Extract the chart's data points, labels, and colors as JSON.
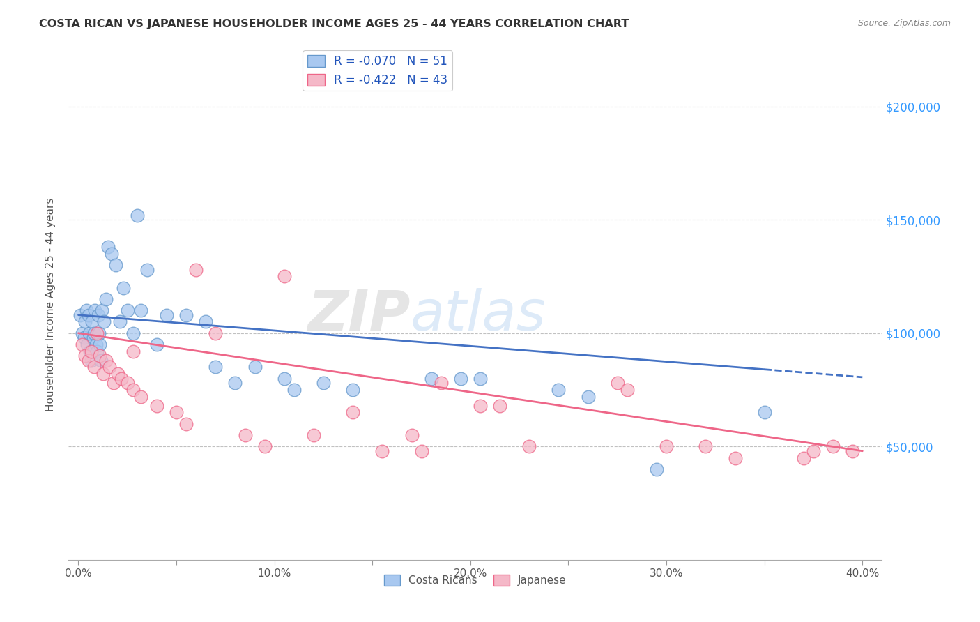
{
  "title": "COSTA RICAN VS JAPANESE HOUSEHOLDER INCOME AGES 25 - 44 YEARS CORRELATION CHART",
  "source": "Source: ZipAtlas.com",
  "xlabel_ticks": [
    "0.0%",
    "",
    "10.0%",
    "",
    "20.0%",
    "",
    "30.0%",
    "",
    "40.0%"
  ],
  "xlabel_values": [
    0.0,
    5.0,
    10.0,
    15.0,
    20.0,
    25.0,
    30.0,
    35.0,
    40.0
  ],
  "ylabel_ticks": [
    "$50,000",
    "$100,000",
    "$150,000",
    "$200,000"
  ],
  "ylabel_values": [
    50000,
    100000,
    150000,
    200000
  ],
  "ylabel_label": "Householder Income Ages 25 - 44 years",
  "xlim": [
    -0.5,
    41.0
  ],
  "ylim": [
    0,
    225000
  ],
  "legend_cr": "R = -0.070   N = 51",
  "legend_jp": "R = -0.422   N = 43",
  "cr_color": "#a8c8f0",
  "jp_color": "#f5b8c8",
  "cr_edge_color": "#6699cc",
  "jp_edge_color": "#ee6688",
  "cr_line_color": "#4472c4",
  "jp_line_color": "#ee6688",
  "background_color": "#ffffff",
  "watermark_zip": "ZIP",
  "watermark_atlas": "atlas",
  "cr_R": "-0.070",
  "cr_N": "51",
  "jp_R": "-0.422",
  "jp_N": "43",
  "costa_ricans_x": [
    0.1,
    0.2,
    0.3,
    0.35,
    0.4,
    0.45,
    0.5,
    0.55,
    0.6,
    0.65,
    0.7,
    0.75,
    0.8,
    0.85,
    0.9,
    0.95,
    1.0,
    1.05,
    1.1,
    1.15,
    1.2,
    1.3,
    1.4,
    1.5,
    1.7,
    1.9,
    2.1,
    2.3,
    2.5,
    2.8,
    3.2,
    3.5,
    4.0,
    4.5,
    5.5,
    6.5,
    7.0,
    8.0,
    9.0,
    10.5,
    11.0,
    12.5,
    14.0,
    18.0,
    19.5,
    20.5,
    24.5,
    26.0,
    29.5,
    35.0,
    3.0
  ],
  "costa_ricans_y": [
    108000,
    100000,
    98000,
    105000,
    110000,
    95000,
    108000,
    100000,
    92000,
    88000,
    105000,
    98000,
    100000,
    110000,
    95000,
    92000,
    108000,
    100000,
    95000,
    88000,
    110000,
    105000,
    115000,
    138000,
    135000,
    130000,
    105000,
    120000,
    110000,
    100000,
    110000,
    128000,
    95000,
    108000,
    108000,
    105000,
    85000,
    78000,
    85000,
    80000,
    75000,
    78000,
    75000,
    80000,
    80000,
    80000,
    75000,
    72000,
    40000,
    65000,
    152000
  ],
  "japanese_x": [
    0.2,
    0.35,
    0.5,
    0.65,
    0.8,
    0.95,
    1.1,
    1.25,
    1.4,
    1.6,
    1.8,
    2.0,
    2.2,
    2.5,
    2.8,
    3.2,
    4.0,
    5.0,
    5.5,
    6.0,
    7.0,
    8.5,
    9.5,
    10.5,
    12.0,
    14.0,
    15.5,
    17.0,
    17.5,
    18.5,
    20.5,
    21.5,
    23.0,
    27.5,
    28.0,
    30.0,
    32.0,
    33.5,
    37.0,
    37.5,
    38.5,
    39.5,
    2.8
  ],
  "japanese_y": [
    95000,
    90000,
    88000,
    92000,
    85000,
    100000,
    90000,
    82000,
    88000,
    85000,
    78000,
    82000,
    80000,
    78000,
    75000,
    72000,
    68000,
    65000,
    60000,
    128000,
    100000,
    55000,
    50000,
    125000,
    55000,
    65000,
    48000,
    55000,
    48000,
    78000,
    68000,
    68000,
    50000,
    78000,
    75000,
    50000,
    50000,
    45000,
    45000,
    48000,
    50000,
    48000,
    92000
  ]
}
